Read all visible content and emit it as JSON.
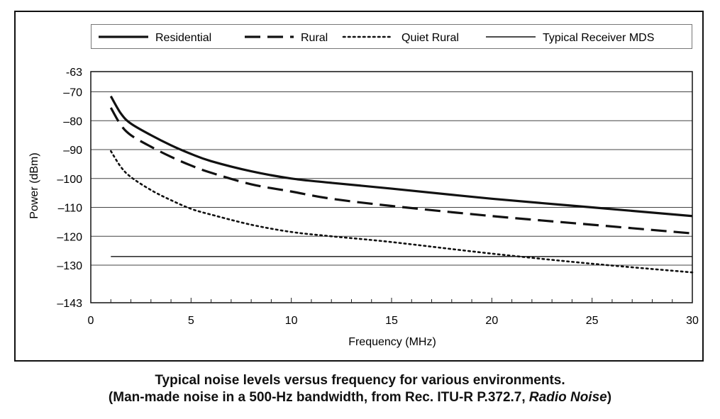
{
  "chart_data": {
    "type": "line",
    "xlabel": "Frequency (MHz)",
    "ylabel": "Power (dBm)",
    "xlim": [
      0,
      30
    ],
    "ylim": [
      -143,
      -63
    ],
    "x_ticks": [
      0,
      5,
      10,
      15,
      20,
      25,
      30
    ],
    "y_ticks": [
      -63,
      -70,
      -80,
      -90,
      -100,
      -110,
      -120,
      -130,
      -143
    ],
    "y_tick_labels": [
      "-63",
      "–70",
      "–80",
      "–90",
      "–100",
      "–110",
      "–120",
      "–130",
      "–143"
    ],
    "grid": true,
    "legend_position": "top",
    "series": [
      {
        "name": "Residential",
        "style": "solid-thick",
        "x": [
          1,
          1.5,
          2,
          3,
          4,
          5,
          6,
          8,
          10,
          12,
          15,
          20,
          25,
          30
        ],
        "y": [
          -71.5,
          -77.5,
          -81,
          -85,
          -88.5,
          -91.5,
          -94,
          -97.5,
          -100,
          -101.5,
          -103.5,
          -107,
          -110,
          -113
        ]
      },
      {
        "name": "Rural",
        "style": "dashed",
        "x": [
          1,
          1.5,
          2,
          3,
          4,
          5,
          6,
          8,
          10,
          12,
          15,
          20,
          25,
          30
        ],
        "y": [
          -75.5,
          -81.5,
          -85,
          -89,
          -92.5,
          -95.5,
          -98,
          -102,
          -104.5,
          -107,
          -109.5,
          -113,
          -116,
          -119
        ]
      },
      {
        "name": "Quiet Rural",
        "style": "dotted",
        "x": [
          1,
          1.5,
          2,
          3,
          4,
          5,
          6,
          8,
          10,
          12,
          15,
          20,
          25,
          30
        ],
        "y": [
          -90.5,
          -96,
          -99.5,
          -104,
          -107.5,
          -110.5,
          -112.5,
          -116,
          -118.5,
          -120,
          -122,
          -126,
          -129.5,
          -132.5
        ]
      },
      {
        "name": "Typical Receiver MDS",
        "style": "solid-thin",
        "x": [
          1,
          30
        ],
        "y": [
          -127,
          -127
        ]
      }
    ]
  },
  "caption": {
    "line1": "Typical noise levels versus frequency for various environments.",
    "line2_prefix": "(Man-made noise in a 500-Hz bandwidth, from Rec. ITU-R P.372.7, ",
    "line2_italic": "Radio Noise",
    "line2_suffix": ")"
  }
}
